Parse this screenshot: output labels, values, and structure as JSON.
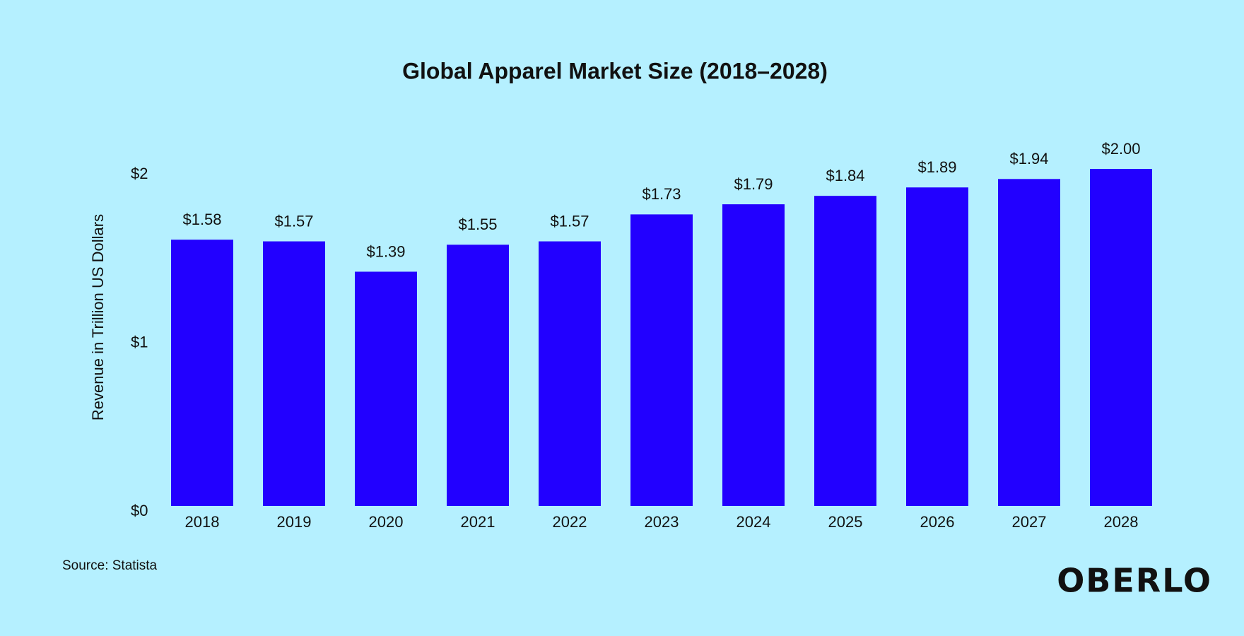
{
  "chart_data": {
    "type": "bar",
    "title": "Global Apparel Market Size (2018–2028)",
    "y_axis_label": "Revenue in Trillion US Dollars",
    "categories": [
      "2018",
      "2019",
      "2020",
      "2021",
      "2022",
      "2023",
      "2024",
      "2025",
      "2026",
      "2027",
      "2028"
    ],
    "values": [
      1.58,
      1.57,
      1.39,
      1.55,
      1.57,
      1.73,
      1.79,
      1.84,
      1.89,
      1.94,
      2.0
    ],
    "value_labels": [
      "$1.58",
      "$1.57",
      "$1.39",
      "$1.55",
      "$1.57",
      "$1.73",
      "$1.79",
      "$1.84",
      "$1.89",
      "$1.94",
      "$2.00"
    ],
    "color": "#2200ff",
    "ylim": [
      0,
      2
    ],
    "yticks": [
      {
        "value": 0,
        "label": "$0"
      },
      {
        "value": 1,
        "label": "$1"
      },
      {
        "value": 2,
        "label": "$2"
      }
    ],
    "grid": false,
    "source": "Source: Statista",
    "logo": "OBERLO"
  }
}
